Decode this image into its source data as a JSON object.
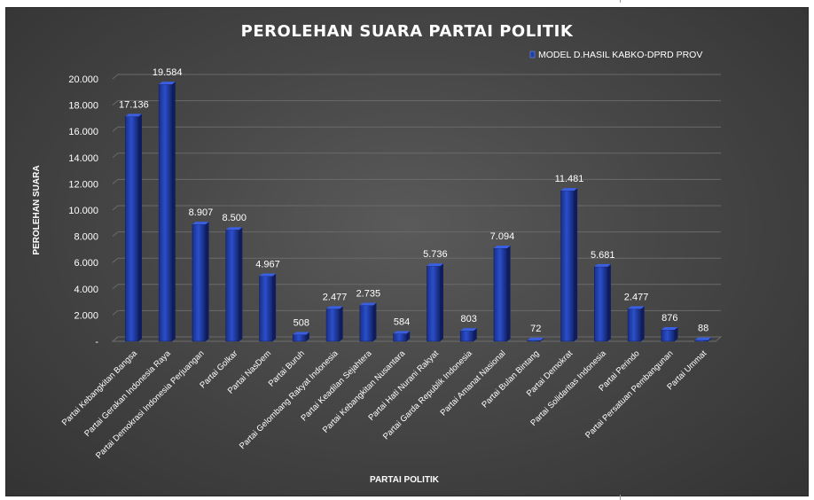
{
  "chart_data": {
    "type": "bar",
    "title": "PEROLEHAN SUARA PARTAI POLITIK",
    "xlabel": "PARTAI POLITIK",
    "ylabel": "PEROLEHAN SUARA",
    "ylim": [
      0,
      20000
    ],
    "yticks": [
      0,
      2000,
      4000,
      6000,
      8000,
      10000,
      12000,
      14000,
      16000,
      18000,
      20000
    ],
    "ytick_labels": [
      "-",
      "2.000",
      "4.000",
      "6.000",
      "8.000",
      "10.000",
      "12.000",
      "14.000",
      "16.000",
      "18.000",
      "20.000"
    ],
    "grid": true,
    "legend_position": "top-right",
    "categories": [
      "Partai Kebangkitan Bangsa",
      "Partai Gerakan Indonesia Raya",
      "Partai Demokrasi Indonesia Perjuangan",
      "Partai Golkar",
      "Partai NasDem",
      "Partai Buruh",
      "Partai Gelombang Rakyat Indonesia",
      "Partai Keadilan Sejahtera",
      "Partai Kebangkitan Nusantara",
      "Partai Hati Nurani Rakyat",
      "Partai Garda Republik Indonesia",
      "Partai Amanat Nasional",
      "Partai Bulan Bintang",
      "Partai Demokrat",
      "Partai Solidaritas Indonesia",
      "Partai Perindo",
      "Partai Persatuan Pembangunan",
      "Partai Ummat"
    ],
    "series": [
      {
        "name": "MODEL D.HASIL KABKO-DPRD PROV",
        "color": "#1f3fa8",
        "values": [
          17136,
          19584,
          8907,
          8500,
          4967,
          508,
          2477,
          2735,
          584,
          5736,
          803,
          7094,
          72,
          11481,
          5681,
          2477,
          876,
          88
        ],
        "labels": [
          "17.136",
          "19.584",
          "8.907",
          "8.500",
          "4.967",
          "508",
          "2.477",
          "2.735",
          "584",
          "5.736",
          "803",
          "7.094",
          "72",
          "11.481",
          "5.681",
          "2.477",
          "876",
          "88"
        ]
      }
    ]
  }
}
